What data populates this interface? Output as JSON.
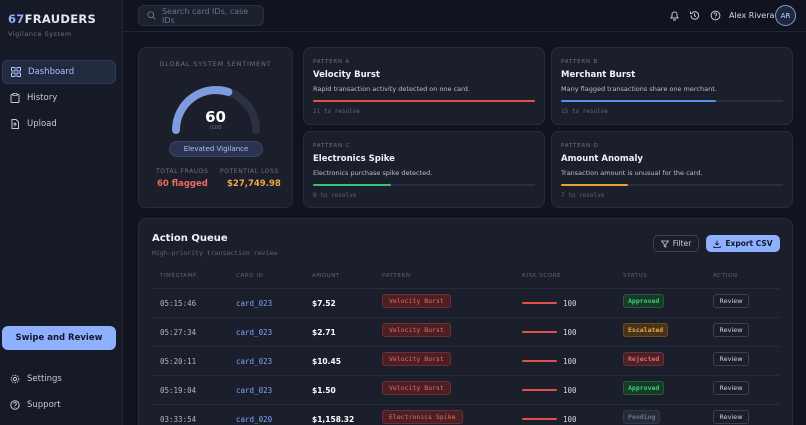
{
  "brand": {
    "num": "67",
    "name": "FRAUDERS",
    "subtitle": "Vigilance System"
  },
  "sidebar": {
    "items": [
      {
        "label": "Dashboard",
        "icon": "grid-icon",
        "active": true
      },
      {
        "label": "History",
        "icon": "clipboard-icon"
      },
      {
        "label": "Upload",
        "icon": "upload-file-icon"
      }
    ],
    "cta": "Swipe and Review",
    "footer": [
      {
        "label": "Settings",
        "icon": "gear-icon"
      },
      {
        "label": "Support",
        "icon": "help-circle-icon"
      }
    ]
  },
  "topbar": {
    "search_placeholder": "Search card IDs, case IDs",
    "user_name": "Alex Rivera",
    "user_initials": "AR"
  },
  "sentiment": {
    "title": "GLOBAL SYSTEM SENTIMENT",
    "value": "60",
    "scale": "/100",
    "gauge_fraction": 0.6,
    "badge": "Elevated Vigilance",
    "total_frauds_label": "TOTAL FRAUDS",
    "total_frauds_value": "60 flagged",
    "potential_loss_label": "POTENTIAL LOSS",
    "potential_loss_value": "$27,749.98"
  },
  "patterns": [
    {
      "label": "PATTERN A",
      "title": "Velocity Burst",
      "desc": "Rapid transaction activity detected on one card.",
      "resolve": "21 to resolve",
      "color": "#e0514a",
      "fill": 1.0
    },
    {
      "label": "PATTERN B",
      "title": "Merchant Burst",
      "desc": "Many flagged transactions share one merchant.",
      "resolve": "15 to resolve",
      "color": "#5b8fe8",
      "fill": 0.7
    },
    {
      "label": "PATTERN C",
      "title": "Electronics Spike",
      "desc": "Electronics purchase spike detected.",
      "resolve": "8 to resolve",
      "color": "#38c172",
      "fill": 0.35
    },
    {
      "label": "PATTERN D",
      "title": "Amount Anomaly",
      "desc": "Transaction amount is unusual for the card.",
      "resolve": "7 to resolve",
      "color": "#e8a33a",
      "fill": 0.3
    }
  ],
  "queue": {
    "title": "Action Queue",
    "subtitle": "High-priority transaction review",
    "filter_label": "Filter",
    "export_label": "Export CSV",
    "columns": [
      "TIMESTAMP",
      "CARD ID",
      "AMOUNT",
      "PATTERN",
      "RISK SCORE",
      "STATUS",
      "ACTION"
    ],
    "rows": [
      {
        "time": "05:15:46",
        "card": "card_023",
        "amount": "$7.52",
        "pattern": "Velocity Burst",
        "risk": "100",
        "status": "Approved",
        "action": "Review"
      },
      {
        "time": "05:27:34",
        "card": "card_023",
        "amount": "$2.71",
        "pattern": "Velocity Burst",
        "risk": "100",
        "status": "Escalated",
        "action": "Review"
      },
      {
        "time": "05:20:11",
        "card": "card_023",
        "amount": "$10.45",
        "pattern": "Velocity Burst",
        "risk": "100",
        "status": "Rejected",
        "action": "Review"
      },
      {
        "time": "05:19:04",
        "card": "card_023",
        "amount": "$1.50",
        "pattern": "Velocity Burst",
        "risk": "100",
        "status": "Approved",
        "action": "Review"
      },
      {
        "time": "03:33:54",
        "card": "card_020",
        "amount": "$1,158.32",
        "pattern": "Electronics Spike",
        "risk": "100",
        "status": "Pending",
        "action": "Review"
      }
    ]
  },
  "colors": {
    "accent": "#8fb0ff",
    "approved": "#3ecf7a",
    "escalated": "#e8a33a",
    "rejected": "#e0514a",
    "pending": "#6b7289"
  }
}
